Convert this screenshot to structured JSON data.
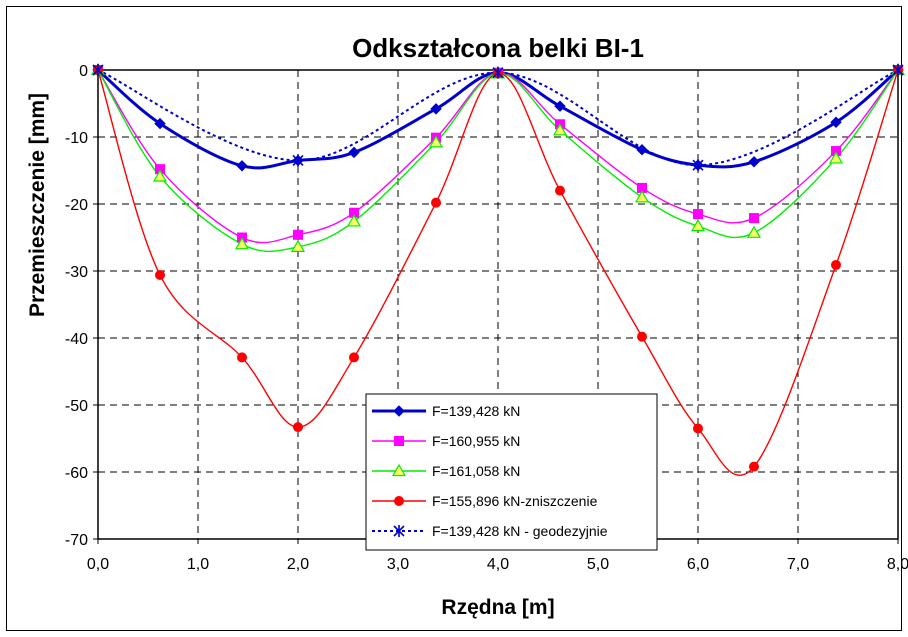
{
  "chart_data": {
    "type": "line",
    "title": "Odkształcona belki BI-1",
    "xlabel": "Rzędna [m]",
    "ylabel": "Przemieszczenie [mm]",
    "xlim": [
      0,
      8
    ],
    "ylim": [
      -70,
      0
    ],
    "x_ticks": [
      "0,0",
      "1,0",
      "2,0",
      "3,0",
      "4,0",
      "5,0",
      "6,0",
      "7,0",
      "8,0"
    ],
    "y_ticks": [
      "0",
      "-10",
      "-20",
      "-30",
      "-40",
      "-50",
      "-60",
      "-70"
    ],
    "grid": true,
    "legend_position": "bottom-center",
    "series": [
      {
        "name": "F=139,428 kN",
        "color": "#0000cc",
        "marker": "diamond",
        "line": "solid-thick",
        "x": [
          0,
          0.62,
          1.44,
          2.0,
          2.56,
          3.38,
          4.0,
          4.62,
          5.44,
          6.0,
          6.56,
          7.38,
          8.0
        ],
        "y": [
          0,
          -8.0,
          -14.3,
          -13.5,
          -12.3,
          -5.8,
          -0.4,
          -5.4,
          -11.9,
          -14.2,
          -13.7,
          -7.8,
          0
        ]
      },
      {
        "name": "F=160,955 kN",
        "color": "#ff00ff",
        "marker": "square",
        "line": "solid",
        "x": [
          0,
          0.62,
          1.44,
          2.0,
          2.56,
          3.38,
          4.0,
          4.62,
          5.44,
          6.0,
          6.56,
          7.38,
          8.0
        ],
        "y": [
          0,
          -14.8,
          -25.0,
          -24.6,
          -21.3,
          -10.1,
          -0.4,
          -8.1,
          -17.6,
          -21.5,
          -22.1,
          -12.1,
          0
        ]
      },
      {
        "name": "F=161,058 kN",
        "color": "#00ee00",
        "marker": "triangle",
        "line": "solid",
        "x": [
          0,
          0.62,
          1.44,
          2.0,
          2.56,
          3.38,
          4.0,
          4.62,
          5.44,
          6.0,
          6.56,
          7.38,
          8.0
        ],
        "y": [
          0,
          -15.9,
          -26.0,
          -26.4,
          -22.6,
          -10.8,
          -0.5,
          -9.0,
          -19.0,
          -23.3,
          -24.3,
          -13.2,
          0
        ]
      },
      {
        "name": "F=155,896 kN-zniszczenie",
        "color": "#ff0000",
        "marker": "circle",
        "line": "solid",
        "x": [
          0,
          0.62,
          1.44,
          2.0,
          2.56,
          3.38,
          4.0,
          4.62,
          5.44,
          6.0,
          6.56,
          7.38,
          8.0
        ],
        "y": [
          0,
          -30.6,
          -42.9,
          -53.3,
          -42.9,
          -19.8,
          -0.5,
          -18.0,
          -39.8,
          -53.5,
          -59.2,
          -29.1,
          0
        ]
      },
      {
        "name": "F=139,428 kN - geodezyjnie",
        "color": "#0000cc",
        "marker": "asterisk",
        "line": "dotted",
        "x": [
          0,
          2.0,
          4.0,
          6.0,
          8.0
        ],
        "y": [
          0,
          -13.5,
          -0.4,
          -14.2,
          0
        ]
      }
    ]
  }
}
